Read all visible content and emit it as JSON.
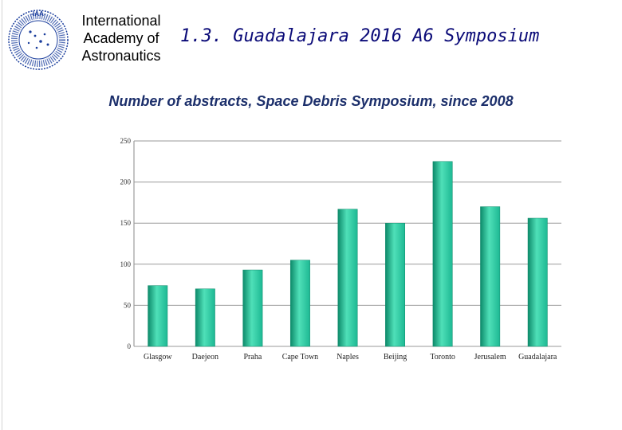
{
  "organization": {
    "lines": [
      "International",
      "Academy of",
      "Astronautics"
    ],
    "logo_text": "-IAA-",
    "logo_colors": {
      "ring": "#1a3d9c",
      "inner": "#ffffff",
      "stars": "#1a3d9c"
    }
  },
  "slide_title": "1.3. Guadalajara 2016 A6 Symposium",
  "chart_data": {
    "type": "bar",
    "title": "Number of abstracts, Space Debris Symposium, since 2008",
    "xlabel": "",
    "ylabel": "",
    "categories": [
      "Glasgow",
      "Daejeon",
      "Praha",
      "Cape Town",
      "Naples",
      "Beijing",
      "Toronto",
      "Jerusalem",
      "Guadalajara"
    ],
    "values": [
      74,
      70,
      93,
      105,
      167,
      150,
      225,
      170,
      156
    ],
    "ylim": [
      0,
      250
    ],
    "yticks": [
      0,
      50,
      100,
      150,
      200,
      250
    ],
    "grid": true,
    "legend": "none",
    "bar_color": "#1db893",
    "bar_color_light": "#4fe0b8",
    "bar_color_dark": "#0d8a6a"
  }
}
